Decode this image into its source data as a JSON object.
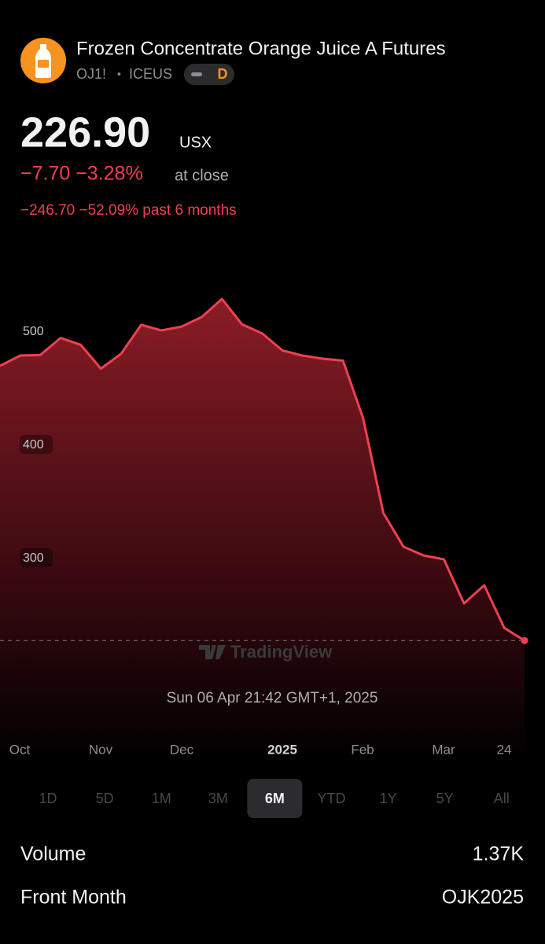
{
  "header": {
    "title": "Frozen Concentrate Orange Juice A Futures",
    "symbol": "OJ1!",
    "separator": "•",
    "exchange": "ICEUS",
    "badge": "D"
  },
  "quote": {
    "price": "226.90",
    "currency": "USX",
    "change": "−7.70 −3.28%",
    "change_note": "at close",
    "period_change": "−246.70 −52.09% past 6 months"
  },
  "chart_data": {
    "type": "line",
    "color": "#f0404f",
    "values": [
      469.4,
      478.5,
      479,
      494,
      488,
      467,
      480,
      505.6,
      500.7,
      504,
      512.5,
      528.5,
      506,
      498,
      483,
      478.5,
      475.7,
      474,
      423,
      339.6,
      309.7,
      302,
      298.6,
      259.7,
      275.7,
      238,
      226.9
    ],
    "ylim": [
      130,
      580
    ],
    "yticks": [
      300,
      400,
      500
    ],
    "xtick_labels": [
      "Oct",
      "Nov",
      "Dec",
      "2025",
      "Feb",
      "Mar",
      "24"
    ],
    "watermark": "TradingView",
    "timestamp": "Sun 06 Apr 21:42 GMT+1, 2025"
  },
  "timeframes": {
    "options": [
      "1D",
      "5D",
      "1M",
      "3M",
      "6M",
      "YTD",
      "1Y",
      "5Y",
      "All"
    ],
    "selected": "6M"
  },
  "stats": [
    {
      "label": "Volume",
      "value": "1.37K"
    },
    {
      "label": "Front Month",
      "value": "OJK2025"
    }
  ]
}
